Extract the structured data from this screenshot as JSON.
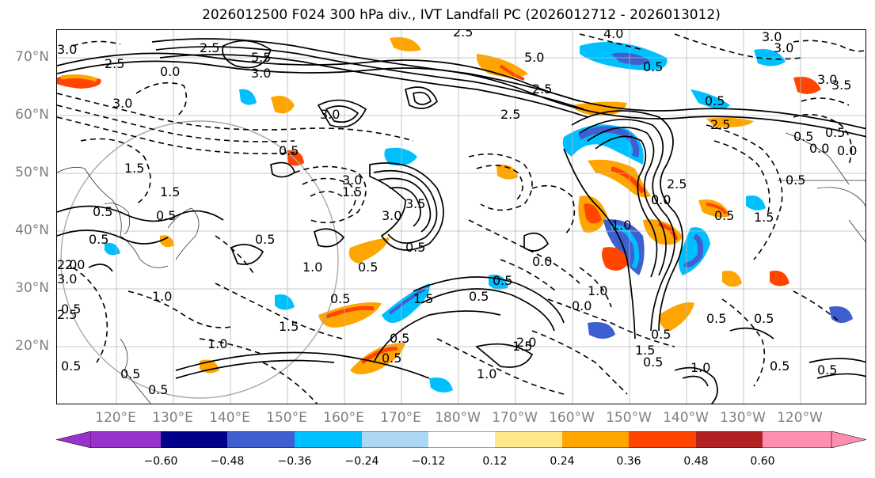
{
  "title": "2026012500 F024 300 hPa div., IVT Landfall PC (2026012712 - 2026013012)",
  "lat_labels": [
    "70°N",
    "60°N",
    "50°N",
    "40°N",
    "30°N",
    "20°N"
  ],
  "lon_labels": [
    "120°E",
    "130°E",
    "140°E",
    "150°E",
    "160°E",
    "170°E",
    "180°W",
    "170°W",
    "160°W",
    "150°W",
    "140°W",
    "130°W",
    "120°W"
  ],
  "colorbar": {
    "ticks": [
      "−0.60",
      "−0.48",
      "−0.36",
      "−0.24",
      "−0.12",
      "0.12",
      "0.24",
      "0.36",
      "0.48",
      "0.60"
    ],
    "colors": [
      "#9932cc",
      "#00008b",
      "#3d5fcf",
      "#00bfff",
      "#add8f5",
      "#ffffff",
      "#ffe88a",
      "#ffa500",
      "#ff4500",
      "#b22222",
      "#ff8fb0"
    ]
  },
  "contour_labels": [
    "3.0",
    "4.0",
    "2.5",
    "3.5",
    "3.0",
    "5.0",
    "2.5",
    "3.0",
    "5.5",
    "2.5",
    "0.5",
    "0.5",
    "3.0",
    "3.0",
    "0.0",
    "2.5",
    "0.0",
    "0.5",
    "2.5",
    "0.5",
    "2.5",
    "3.0",
    "1.5",
    "0.5",
    "2.0",
    "1.5",
    "0.5",
    "0.5",
    "0.0",
    "0.5",
    "2.5",
    "3.5",
    "1.5",
    "3.0",
    "3.0",
    "1.0",
    "0.5",
    "0.0",
    "0.5",
    "1.0",
    "0.5",
    "2.0",
    "3.0",
    "1.5",
    "0.5",
    "1.0",
    "2.5",
    "1.0",
    "0.0",
    "0.5",
    "0.5",
    "0.5",
    "1.5",
    "0.5",
    "2.0",
    "1.0",
    "0.5",
    "0.5",
    "0.5",
    "1.5",
    "0.5",
    "1.0",
    "0.0",
    "0.5",
    "1.5",
    "0.5",
    "0.5",
    "0.5",
    "0.5",
    "0.5",
    "3.0",
    "0.0",
    "1.5",
    "1.0",
    "0.5",
    "0.5"
  ]
}
